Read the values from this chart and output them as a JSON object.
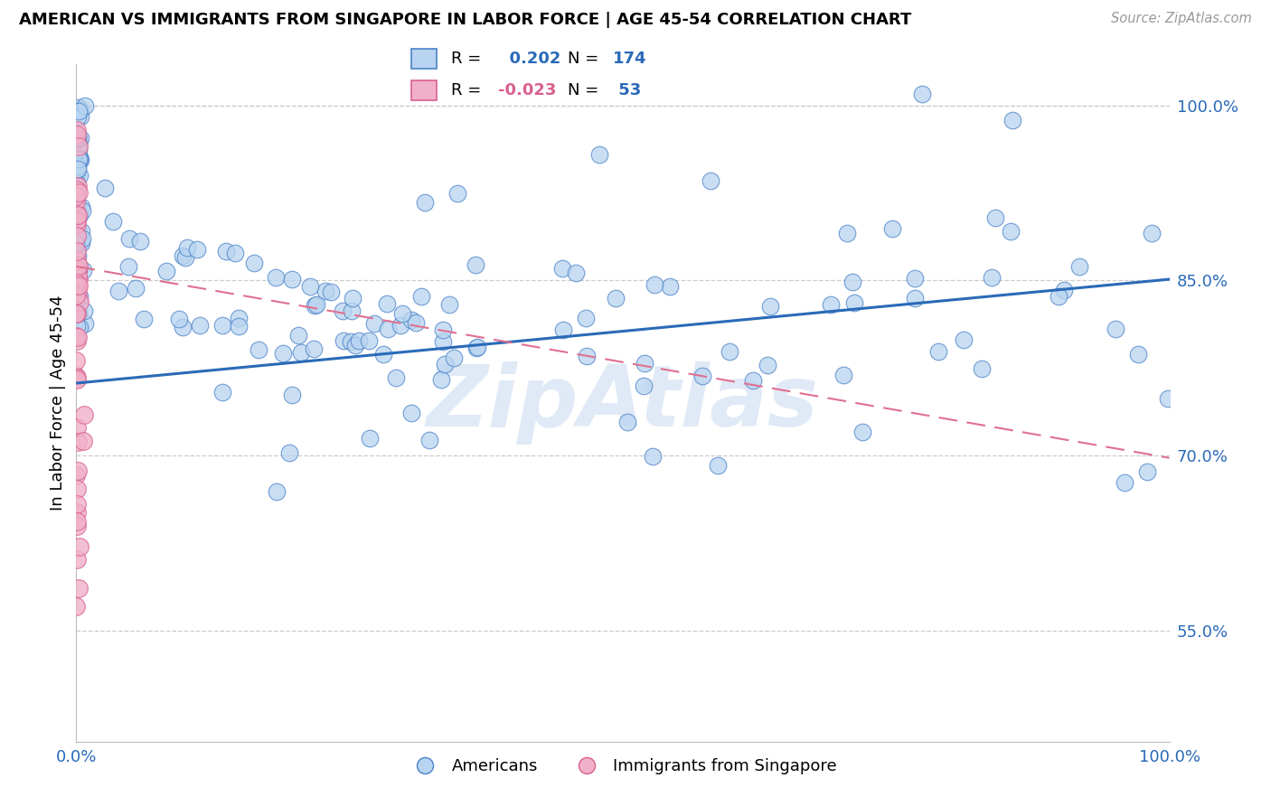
{
  "title": "AMERICAN VS IMMIGRANTS FROM SINGAPORE IN LABOR FORCE | AGE 45-54 CORRELATION CHART",
  "source": "Source: ZipAtlas.com",
  "ylabel": "In Labor Force | Age 45-54",
  "xlim": [
    0.0,
    1.0
  ],
  "ylim": [
    0.455,
    1.035
  ],
  "ytick_vals": [
    0.55,
    0.7,
    0.85,
    1.0
  ],
  "ytick_labels": [
    "55.0%",
    "70.0%",
    "85.0%",
    "100.0%"
  ],
  "xtick_vals": [
    0.0,
    1.0
  ],
  "xtick_labels": [
    "0.0%",
    "100.0%"
  ],
  "americans_R": 0.202,
  "americans_N": 174,
  "singapore_R": -0.023,
  "singapore_N": 53,
  "blue_fill": "#b8d4f0",
  "blue_edge": "#4a82c8",
  "blue_line": "#2a6ab8",
  "pink_fill": "#f0b0c8",
  "pink_edge": "#d86090",
  "pink_line": "#e07090",
  "grid_color": "#cccccc",
  "watermark_text": "ZipAtlas",
  "legend_blue": "Americans",
  "legend_pink": "Immigrants from Singapore",
  "title_fontsize": 13,
  "axis_tick_fontsize": 13,
  "legend_fontsize": 14,
  "am_line_y0": 0.762,
  "am_line_y1": 0.851,
  "sg_line_y0": 0.862,
  "sg_line_y1": 0.698
}
